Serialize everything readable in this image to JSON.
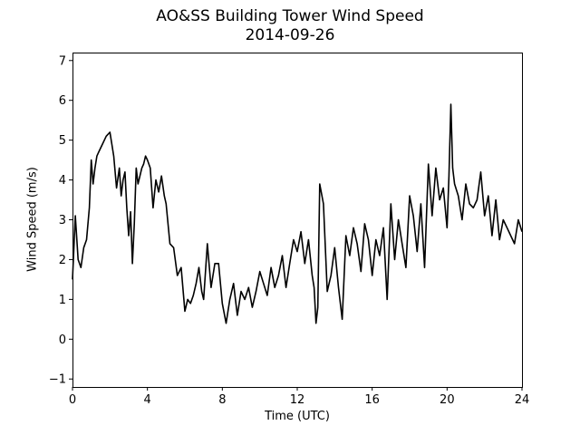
{
  "chart_data": {
    "type": "line",
    "title": "AO&SS Building Tower Wind Speed",
    "subtitle": "2014-09-26",
    "xlabel": "Time (UTC)",
    "ylabel": "Wind Speed (m/s)",
    "xlim": [
      0,
      24
    ],
    "ylim": [
      -1.2,
      7.2
    ],
    "xticks": [
      0,
      4,
      8,
      12,
      16,
      20,
      24
    ],
    "yticks": [
      -1,
      0,
      1,
      2,
      3,
      4,
      5,
      6,
      7
    ],
    "grid": false,
    "line_color": "#000000",
    "series": [
      {
        "x": [
          0.0,
          0.15,
          0.3,
          0.45,
          0.6,
          0.75,
          0.9,
          1.0,
          1.1,
          1.2,
          1.3,
          1.4,
          1.5,
          1.6,
          1.8,
          2.0,
          2.1,
          2.2,
          2.35,
          2.5,
          2.6,
          2.7,
          2.8,
          2.9,
          3.0,
          3.1,
          3.2,
          3.3,
          3.4,
          3.5,
          3.6,
          3.7,
          3.8,
          3.9,
          4.0,
          4.15,
          4.3,
          4.45,
          4.6,
          4.75,
          4.9,
          5.0,
          5.2,
          5.4,
          5.6,
          5.8,
          6.0,
          6.15,
          6.3,
          6.45,
          6.6,
          6.75,
          6.9,
          7.0,
          7.2,
          7.4,
          7.6,
          7.8,
          8.0,
          8.2,
          8.4,
          8.6,
          8.8,
          9.0,
          9.2,
          9.4,
          9.6,
          9.8,
          10.0,
          10.2,
          10.4,
          10.6,
          10.8,
          11.0,
          11.2,
          11.4,
          11.6,
          11.8,
          12.0,
          12.2,
          12.4,
          12.6,
          12.8,
          12.9,
          13.0,
          13.1,
          13.2,
          13.4,
          13.6,
          13.8,
          14.0,
          14.2,
          14.4,
          14.6,
          14.8,
          15.0,
          15.2,
          15.4,
          15.6,
          15.8,
          16.0,
          16.2,
          16.4,
          16.6,
          16.8,
          17.0,
          17.2,
          17.4,
          17.6,
          17.8,
          18.0,
          18.2,
          18.4,
          18.6,
          18.8,
          19.0,
          19.2,
          19.4,
          19.6,
          19.8,
          20.0,
          20.1,
          20.2,
          20.3,
          20.4,
          20.6,
          20.8,
          21.0,
          21.2,
          21.4,
          21.6,
          21.8,
          22.0,
          22.2,
          22.4,
          22.6,
          22.8,
          23.0,
          23.2,
          23.4,
          23.6,
          23.8,
          24.0
        ],
        "y": [
          1.5,
          3.1,
          2.0,
          1.8,
          2.3,
          2.5,
          3.3,
          4.5,
          3.9,
          4.3,
          4.6,
          4.7,
          4.8,
          4.9,
          5.1,
          5.2,
          4.9,
          4.6,
          3.8,
          4.3,
          3.6,
          4.0,
          4.2,
          3.3,
          2.6,
          3.2,
          1.9,
          2.9,
          4.3,
          3.9,
          4.1,
          4.3,
          4.4,
          4.6,
          4.5,
          4.3,
          3.3,
          4.0,
          3.7,
          4.1,
          3.6,
          3.4,
          2.4,
          2.3,
          1.6,
          1.8,
          0.7,
          1.0,
          0.9,
          1.1,
          1.4,
          1.8,
          1.2,
          1.0,
          2.4,
          1.3,
          1.9,
          1.9,
          0.9,
          0.4,
          1.0,
          1.4,
          0.6,
          1.2,
          1.0,
          1.3,
          0.8,
          1.2,
          1.7,
          1.4,
          1.1,
          1.8,
          1.3,
          1.6,
          2.1,
          1.3,
          1.9,
          2.5,
          2.2,
          2.7,
          1.9,
          2.5,
          1.6,
          1.3,
          0.4,
          0.8,
          3.9,
          3.4,
          1.2,
          1.6,
          2.3,
          1.3,
          0.5,
          2.6,
          2.1,
          2.8,
          2.4,
          1.7,
          2.9,
          2.5,
          1.6,
          2.5,
          2.1,
          2.8,
          1.0,
          3.4,
          2.0,
          3.0,
          2.4,
          1.8,
          3.6,
          3.1,
          2.2,
          3.4,
          1.8,
          4.4,
          3.1,
          4.3,
          3.5,
          3.8,
          2.8,
          4.1,
          5.9,
          4.3,
          3.9,
          3.6,
          3.0,
          3.9,
          3.4,
          3.3,
          3.5,
          4.2,
          3.1,
          3.6,
          2.6,
          3.5,
          2.5,
          3.0,
          2.8,
          2.6,
          2.4,
          3.0,
          2.7
        ]
      }
    ]
  }
}
